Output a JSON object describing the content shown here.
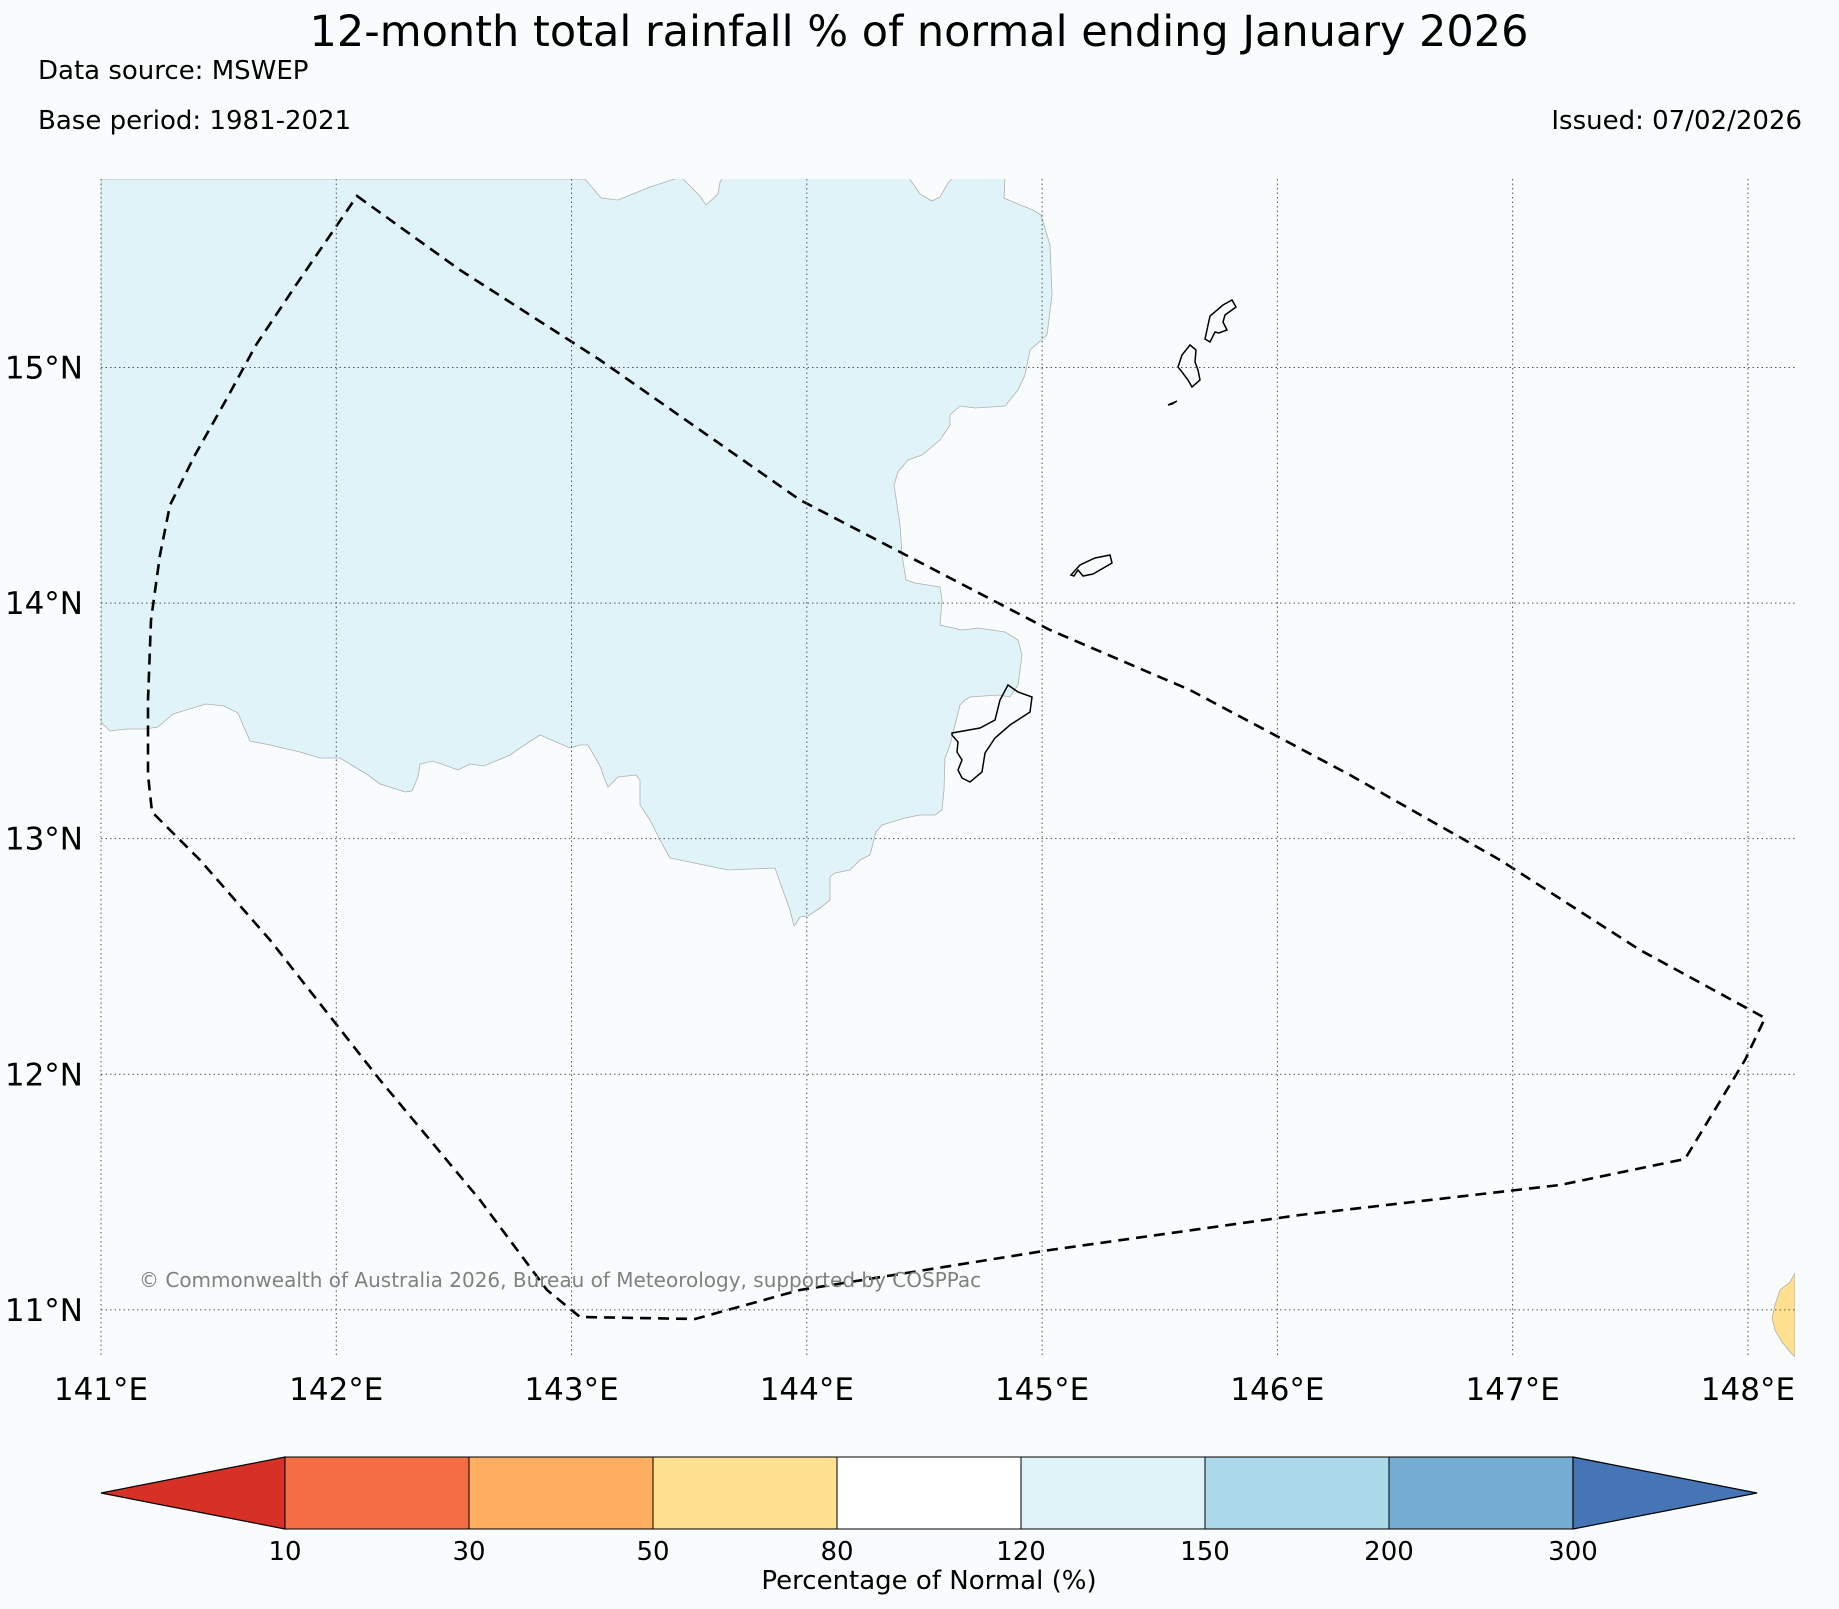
{
  "header": {
    "title": "12-month total rainfall % of normal ending January 2026",
    "data_source": "Data source: MSWEP",
    "base_period": "Base period: 1981-2021",
    "issued": "Issued: 07/02/2026"
  },
  "map": {
    "lon_range": [
      141,
      148.2
    ],
    "lat_range": [
      10.8,
      15.8
    ],
    "lon_ticks": [
      "141°E",
      "142°E",
      "143°E",
      "144°E",
      "145°E",
      "146°E",
      "147°E",
      "148°E"
    ],
    "lat_ticks": [
      "11°N",
      "12°N",
      "13°N",
      "14°N",
      "15°N"
    ],
    "copyright": "© Commonwealth of Australia 2026, Bureau of Meteorology, supported by COSPPac",
    "regions": [
      {
        "name": "region-120-150",
        "category": "120-150",
        "color": "#e0f3f8"
      },
      {
        "name": "region-50-80",
        "category": "50-80",
        "color": "#fee090"
      }
    ],
    "boundary": {
      "style": "dashed",
      "color": "#000000"
    }
  },
  "colorbar": {
    "label": "Percentage of Normal (%)",
    "ticks": [
      "10",
      "30",
      "50",
      "80",
      "120",
      "150",
      "200",
      "300"
    ],
    "below_color": "#d73027",
    "above_color": "#4575b4",
    "colors": [
      "#f46d43",
      "#fdae61",
      "#fee090",
      "#ffffff",
      "#e0f3f8",
      "#abd9e9",
      "#74add1"
    ]
  }
}
